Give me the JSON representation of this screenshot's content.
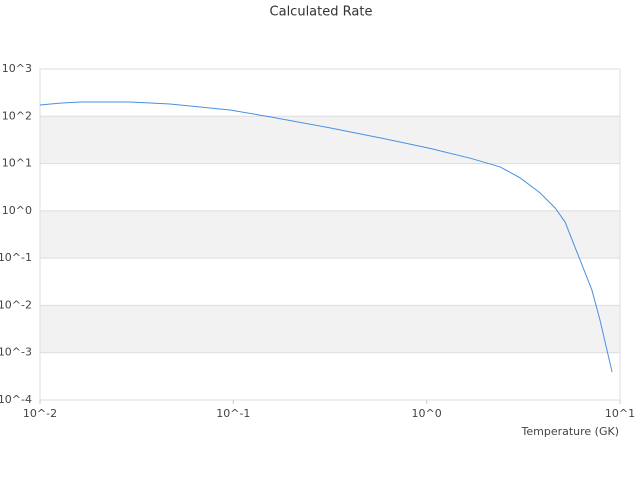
{
  "chart_data": {
    "type": "line",
    "title": "Calculated Rate",
    "x_label": "Temperature (GK)",
    "x_log": true,
    "y_log": true,
    "xlim": [
      0.01,
      10
    ],
    "ylim": [
      0.0001,
      1000
    ],
    "xticks": [
      {
        "value": 0.01,
        "label": "10^-2"
      },
      {
        "value": 0.1,
        "label": "10^-1"
      },
      {
        "value": 1,
        "label": "10^0"
      },
      {
        "value": 10,
        "label": "10^1"
      }
    ],
    "yticks": [
      {
        "value": 0.0001,
        "label": "10^-4"
      },
      {
        "value": 0.001,
        "label": "10^-3"
      },
      {
        "value": 0.01,
        "label": "10^-2"
      },
      {
        "value": 0.1,
        "label": "10^-1"
      },
      {
        "value": 1,
        "label": "10^0"
      },
      {
        "value": 10,
        "label": "10^1"
      },
      {
        "value": 100,
        "label": "10^2"
      },
      {
        "value": 1000,
        "label": "10^3"
      }
    ],
    "grid": true,
    "band_color": "#f2f2f2",
    "series": [
      {
        "color": "#4a90e2",
        "x": [
          0.01,
          0.0127,
          0.0161,
          0.0292,
          0.0471,
          0.0962,
          0.155,
          0.316,
          0.574,
          1.04,
          1.68,
          2.4,
          3.04,
          3.86,
          4.62,
          5.2,
          6.21,
          7.16,
          7.88,
          9.1
        ],
        "values": [
          173,
          190,
          200,
          200,
          182,
          136,
          97,
          57,
          35,
          21,
          13,
          8.5,
          5,
          2.4,
          1.15,
          0.58,
          0.092,
          0.021,
          0.0049,
          0.00039
        ]
      }
    ]
  }
}
